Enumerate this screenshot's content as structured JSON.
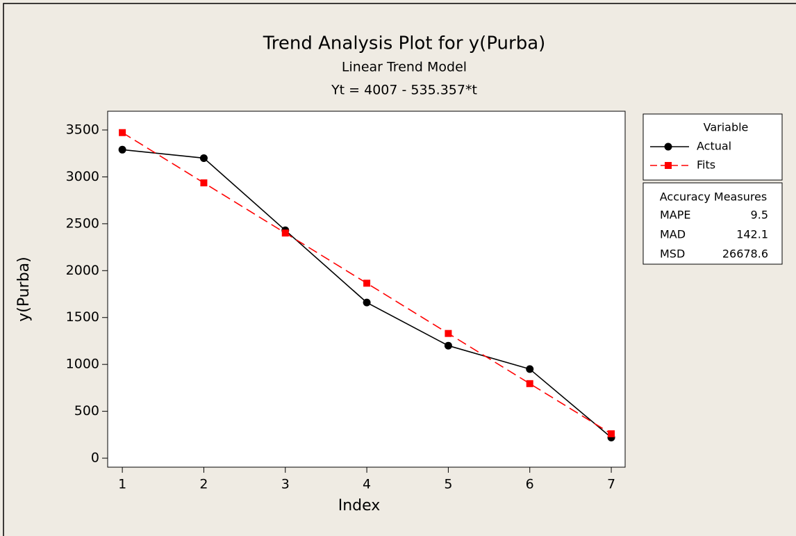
{
  "chart_data": {
    "type": "line",
    "title": "Trend Analysis Plot for y(Purba)",
    "subtitle": "Linear Trend Model",
    "equation": "Yt = 4007 - 535.357*t",
    "x_label": "Index",
    "y_label": "y(Purba)",
    "x": [
      1,
      2,
      3,
      4,
      5,
      6,
      7
    ],
    "series": [
      {
        "name": "Actual",
        "color": "#000000",
        "marker": "circle",
        "dash": false,
        "values": [
          3290,
          3200,
          2430,
          1660,
          1200,
          950,
          220
        ]
      },
      {
        "name": "Fits",
        "color": "#ff0000",
        "marker": "square",
        "dash": true,
        "values": [
          3472,
          2936,
          2401,
          1866,
          1330,
          795,
          260
        ]
      }
    ],
    "xlim": [
      0.82,
      7.17
    ],
    "xticks": [
      1,
      2,
      3,
      4,
      5,
      6,
      7
    ],
    "ylim": [
      -96,
      3700
    ],
    "yticks": [
      0,
      500,
      1000,
      1500,
      2000,
      2500,
      3000,
      3500
    ],
    "legend_title": "Variable",
    "accuracy": {
      "title": "Accuracy Measures",
      "rows": [
        {
          "label": "MAPE",
          "value": 9.5
        },
        {
          "label": "MAD",
          "value": 142.1
        },
        {
          "label": "MSD",
          "value": 26678.6
        }
      ]
    }
  }
}
